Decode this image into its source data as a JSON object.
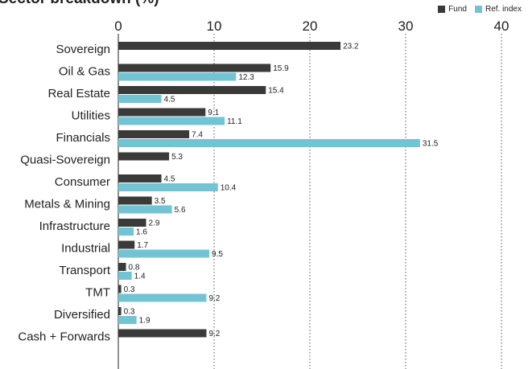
{
  "title": "Sector breakdown (%)",
  "legend": [
    {
      "name": "Fund",
      "color": "#3a3a39"
    },
    {
      "name": "Ref. index",
      "color": "#72c4d4"
    }
  ],
  "chart_data": {
    "type": "bar",
    "orientation": "horizontal",
    "title": "Sector breakdown (%)",
    "xlabel": "",
    "ylabel": "",
    "xlim": [
      0,
      40
    ],
    "ticks": [
      "0",
      "10",
      "20",
      "30",
      "40"
    ],
    "grid": "vertical dotted",
    "legend_position": "top-right",
    "categories": [
      "Sovereign",
      "Oil & Gas",
      "Real Estate",
      "Utilities",
      "Financials",
      "Quasi-Sovereign",
      "Consumer",
      "Metals & Mining",
      "Infrastructure",
      "Industrial",
      "Transport",
      "TMT",
      "Diversified",
      "Cash + Forwards"
    ],
    "series": [
      {
        "name": "Fund",
        "color": "#3a3a39",
        "values": [
          23.2,
          15.9,
          15.4,
          9.1,
          7.4,
          5.3,
          4.5,
          3.5,
          2.9,
          1.7,
          0.8,
          0.3,
          0.3,
          9.2
        ],
        "labels": [
          "23.2",
          "15.9",
          "15.4",
          "9.1",
          "7.4",
          "5.3",
          "4.5",
          "3.5",
          "2.9",
          "1.7",
          "0.8",
          "0.3",
          "0.3",
          "9.2"
        ]
      },
      {
        "name": "Ref. index",
        "color": "#72c4d4",
        "values": [
          null,
          12.3,
          4.5,
          11.1,
          31.5,
          null,
          10.4,
          5.6,
          1.6,
          9.5,
          1.4,
          9.2,
          1.9,
          null
        ],
        "labels": [
          null,
          "12.3",
          "4.5",
          "11.1",
          "31.5",
          null,
          "10.4",
          "5.6",
          "1.6",
          "9.5",
          "1.4",
          "9.2",
          "1.9",
          null
        ]
      }
    ]
  }
}
